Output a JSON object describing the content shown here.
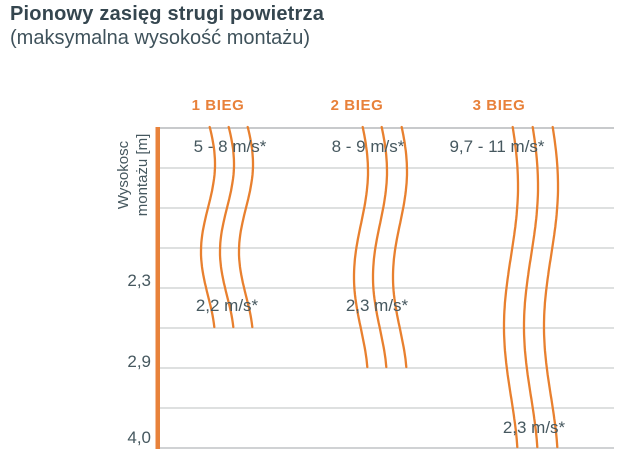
{
  "header": {
    "title": "Pionowy zasięg strugi powietrza",
    "subtitle": "(maksymalna wysokość montażu)"
  },
  "chart_data": {
    "type": "line",
    "title": "Pionowy zasięg strugi powietrza (maksymalna wysokość montażu)",
    "ylabel": "Wysokosc montażu [m]",
    "ylabel_line1": "Wysokosc",
    "ylabel_line2": "montażu [m]",
    "yticks": [
      "2,3",
      "2,9",
      "4,0"
    ],
    "ytick_unit": "m",
    "grid": "horizontal lines on, 9 lines",
    "series": [
      {
        "name": "1 BIEG",
        "outlet_velocity": "5 - 8 m/s*",
        "terminal_velocity": "2,2 m/s*",
        "max_mounting_height_m": "2,3"
      },
      {
        "name": "2 BIEG",
        "outlet_velocity": "8 - 9 m/s*",
        "terminal_velocity": "2,3 m/s*",
        "max_mounting_height_m": "2,9"
      },
      {
        "name": "3 BIEG",
        "outlet_velocity": "9,7 - 11 m/s*",
        "terminal_velocity": "2,3 m/s*",
        "max_mounting_height_m": "4,0"
      }
    ],
    "colors": {
      "accent_orange": "#e8813a",
      "curve_orange": "#e8802f",
      "axis_orange": "#e8823b",
      "text_slate": "#46585f",
      "title_slate": "#35464f",
      "gridline": "#cbcdce",
      "gridline_top": "#a6abad",
      "gridline_bottom": "#b4b8ba"
    }
  }
}
